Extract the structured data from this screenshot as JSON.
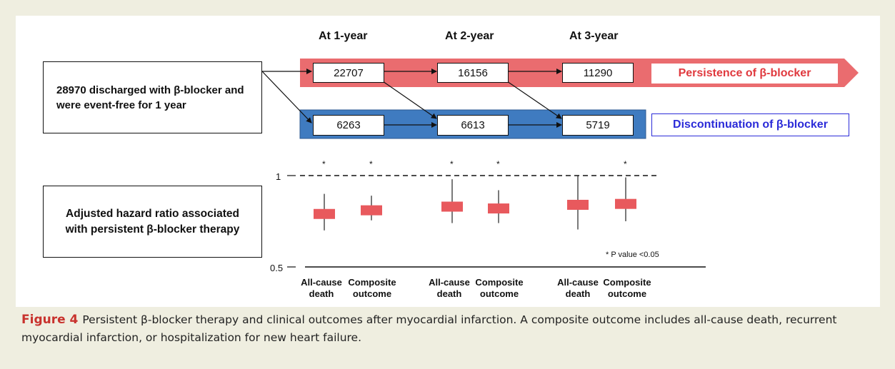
{
  "years": [
    "At 1-year",
    "At 2-year",
    "At 3-year"
  ],
  "source_box": "28970 discharged with β-blocker and were event-free for 1 year",
  "persistence": {
    "label": "Persistence of β-blocker",
    "counts": [
      "22707",
      "16156",
      "11290"
    ],
    "color": "#ea6c6f"
  },
  "discontinuation": {
    "label": "Discontinuation of β-blocker",
    "counts": [
      "6263",
      "6613",
      "5719"
    ],
    "color": "#3f7bc0",
    "label_color": "#2b2bd8"
  },
  "hr_box": "Adjusted hazard ratio associated with persistent β-blocker therapy",
  "chart_data": {
    "type": "forest",
    "ylim": [
      0.5,
      1
    ],
    "ytick_labels": [
      "1",
      "0.5"
    ],
    "reference_line": 1,
    "categories": [
      "All-cause death",
      "Composite outcome",
      "All-cause death",
      "Composite outcome",
      "All-cause death",
      "Composite outcome"
    ],
    "groups": [
      "At 1-year",
      "At 1-year",
      "At 2-year",
      "At 2-year",
      "At 3-year",
      "At 3-year"
    ],
    "estimates": [
      0.79,
      0.81,
      0.83,
      0.82,
      0.84,
      0.845
    ],
    "lower": [
      0.7,
      0.755,
      0.74,
      0.74,
      0.705,
      0.75
    ],
    "upper": [
      0.9,
      0.89,
      0.98,
      0.92,
      1.0,
      0.99
    ],
    "significant": [
      true,
      true,
      true,
      true,
      false,
      true
    ],
    "star_symbol": "*",
    "footnote": "* P value <0.05",
    "box_color": "#e8595d"
  },
  "caption": {
    "label": "Figure 4",
    "text": "Persistent β-blocker therapy and clinical outcomes after myocardial infarction. A composite outcome includes all-cause death, recurrent myocardial infarction, or hospitalization for new heart failure."
  }
}
